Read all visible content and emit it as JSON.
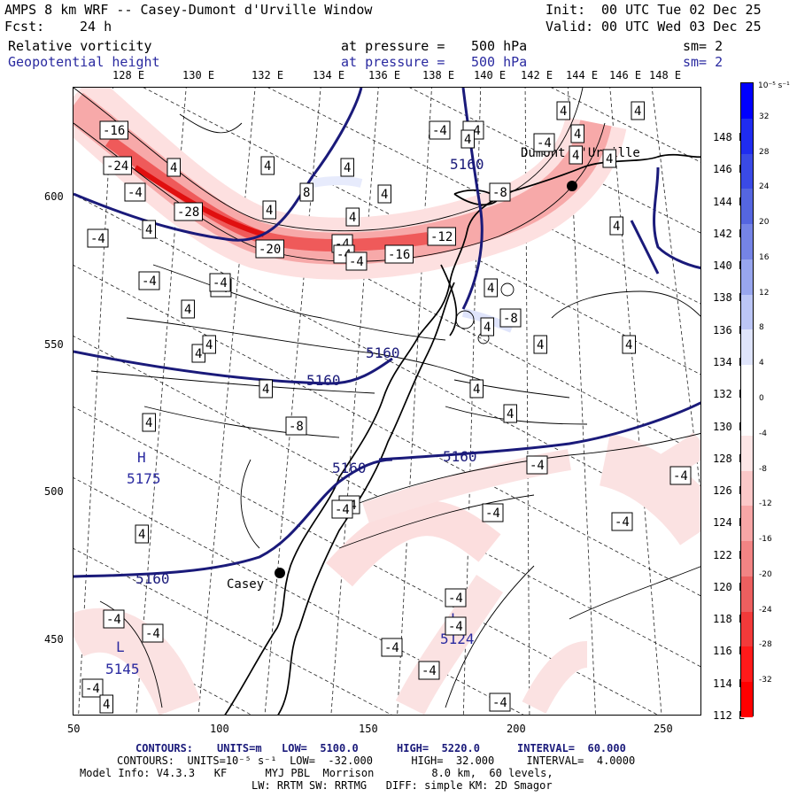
{
  "header": {
    "title_left": "AMPS 8 km WRF -- Casey-Dumont d'Urville Window",
    "init_label": "Init:",
    "init_value": "00 UTC Tue 02 Dec 25",
    "fcst_label": "Fcst:",
    "fcst_value": "24 h",
    "valid_label": "Valid:",
    "valid_value": "00 UTC Wed 03 Dec 25"
  },
  "fields": [
    {
      "name": "Relative vorticity",
      "pressure_label": "at pressure =",
      "pressure_value": "500 hPa",
      "smooth": "sm= 2"
    },
    {
      "name": "Geopotential height",
      "pressure_label": "at pressure =",
      "pressure_value": "500 hPa",
      "smooth": "sm= 2"
    }
  ],
  "top_lon_labels": [
    "128 E",
    "130 E",
    "132 E",
    "134 E",
    "136 E",
    "138 E",
    "140 E",
    "142 E",
    "144 E",
    "146 E",
    "148 E"
  ],
  "right_lon_labels": [
    "148 E",
    "146 E",
    "144 E",
    "142 E",
    "140 E",
    "138 E",
    "136 E",
    "134 E",
    "132 E",
    "130 E",
    "128 E",
    "126 E",
    "124 E",
    "122 E",
    "120 E",
    "118 E",
    "116 E",
    "114 E",
    "112 E"
  ],
  "x_ticks": [
    "50",
    "100",
    "150",
    "200",
    "250"
  ],
  "y_ticks": [
    "600",
    "550",
    "500",
    "450"
  ],
  "colorbar": {
    "unit": "10⁻⁵ s⁻¹",
    "labels": [
      "32",
      "28",
      "24",
      "20",
      "16",
      "12",
      "8",
      "4",
      "0",
      "-4",
      "-8",
      "-12",
      "-16",
      "-20",
      "-24",
      "-28",
      "-32"
    ],
    "colors": [
      "#0000ff",
      "#1f2cf0",
      "#3a4ae6",
      "#5566e0",
      "#7584e6",
      "#98a6ee",
      "#bcc6f6",
      "#dfe4fb",
      "#ffffff",
      "#ffffff",
      "#fde6e6",
      "#fbc8c8",
      "#f7a6a6",
      "#f28484",
      "#ec5f5f",
      "#f23a3a",
      "#ff1a1a",
      "#ff0000"
    ]
  },
  "places": [
    {
      "name": "Casey"
    },
    {
      "name": "Dumont d'Urville"
    }
  ],
  "height_labels": [
    "5160",
    "5160",
    "5160",
    "5160",
    "5160",
    "5160",
    "5160"
  ],
  "highs_lows": [
    {
      "type": "H",
      "value": "5175"
    },
    {
      "type": "L",
      "value": "5124"
    },
    {
      "type": "L",
      "value": "5145"
    }
  ],
  "vort_labels": [
    "-16",
    "-24",
    "-4",
    "-28",
    "-20",
    "-16",
    "-12",
    "-8",
    "-8",
    "-4",
    "-4",
    "-4",
    "-4",
    "-4",
    "-4",
    "-4",
    "-4",
    "-4",
    "-4",
    "-4",
    "-4",
    "-4",
    "-4",
    "-4",
    "-4",
    "-8",
    "-4",
    "-4",
    "-4",
    "-4",
    "-4",
    "-4",
    "-4",
    "-4",
    "4",
    "4",
    "4",
    "4",
    "4",
    "4",
    "8",
    "4",
    "4",
    "4",
    "4",
    "4",
    "4",
    "4",
    "4",
    "4",
    "4",
    "4",
    "4",
    "4",
    "4",
    "4",
    "4",
    "4",
    "4",
    "4",
    "4",
    "4"
  ],
  "footer": {
    "line1": {
      "contours": "CONTOURS:",
      "units": "UNITS=m",
      "low": "LOW=  5100.0",
      "high": "HIGH=  5220.0",
      "interval": "INTERVAL=  60.000"
    },
    "line2": "CONTOURS:  UNITS=10⁻⁵ s⁻¹  LOW=  -32.000      HIGH=  32.000     INTERVAL=  4.0000",
    "line3": "Model Info: V4.3.3   KF      MYJ PBL  Morrison         8.0 km,  60 levels,",
    "line4": "LW: RRTM SW: RRTMG   DIFF: simple KM: 2D Smagor"
  }
}
